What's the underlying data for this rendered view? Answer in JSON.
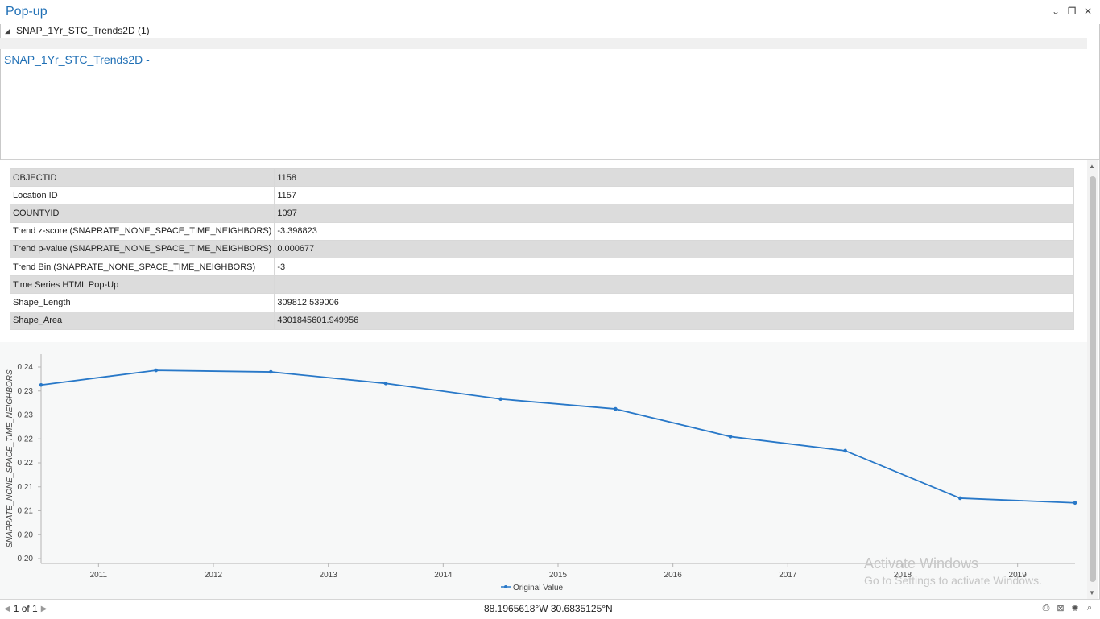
{
  "window": {
    "title": "Pop-up"
  },
  "layer": {
    "label": "SNAP_1Yr_STC_Trends2D (1)"
  },
  "content": {
    "heading": "SNAP_1Yr_STC_Trends2D -"
  },
  "attributes": [
    {
      "key": "OBJECTID",
      "value": "1158"
    },
    {
      "key": "Location ID",
      "value": "1157"
    },
    {
      "key": "COUNTYID",
      "value": "1097"
    },
    {
      "key": "Trend z-score (SNAPRATE_NONE_SPACE_TIME_NEIGHBORS)",
      "value": "-3.398823"
    },
    {
      "key": "Trend p-value (SNAPRATE_NONE_SPACE_TIME_NEIGHBORS)",
      "value": "0.000677"
    },
    {
      "key": "Trend Bin (SNAPRATE_NONE_SPACE_TIME_NEIGHBORS)",
      "value": "-3"
    },
    {
      "key": "Time Series HTML Pop-Up",
      "value": ""
    },
    {
      "key": "Shape_Length",
      "value": "309812.539006"
    },
    {
      "key": "Shape_Area",
      "value": "4301845601.949956"
    }
  ],
  "chart_data": {
    "type": "line",
    "title": "",
    "xlabel": "",
    "ylabel": "SNAPRATE_NONE_SPACE_TIME_NEIGHBORS",
    "x_tick_labels": [
      "2011",
      "2012",
      "2013",
      "2014",
      "2015",
      "2016",
      "2017",
      "2018",
      "2019"
    ],
    "y_tick_labels": [
      "0.24",
      "0.23",
      "0.23",
      "0.22",
      "0.22",
      "0.21",
      "0.21",
      "0.20",
      "0.20"
    ],
    "ylim": [
      0.1993,
      0.2394
    ],
    "xlim": [
      2010.5,
      2019.5
    ],
    "series": [
      {
        "name": "Original Value",
        "color": "#2878c8",
        "x": [
          2010.5,
          2011.5,
          2012.5,
          2013.5,
          2014.5,
          2015.5,
          2016.5,
          2017.5,
          2018.5,
          2019.5
        ],
        "values": [
          0.2335,
          0.2363,
          0.236,
          0.2338,
          0.2308,
          0.2289,
          0.2236,
          0.2209,
          0.2118,
          0.2109
        ]
      }
    ],
    "legend": "bottom-center"
  },
  "status": {
    "record_text": "1 of 1",
    "coords": "88.1965618°W 30.6835125°N"
  },
  "watermark": {
    "line1": "Activate Windows",
    "line2": "Go to Settings to activate Windows."
  },
  "icons": {
    "minimize": "chevron-down-icon",
    "restore": "restore-icon",
    "close": "close-icon",
    "print": "print-icon",
    "zoom_to": "zoom-to-icon",
    "flash": "flash-icon",
    "pan": "pan-icon"
  }
}
